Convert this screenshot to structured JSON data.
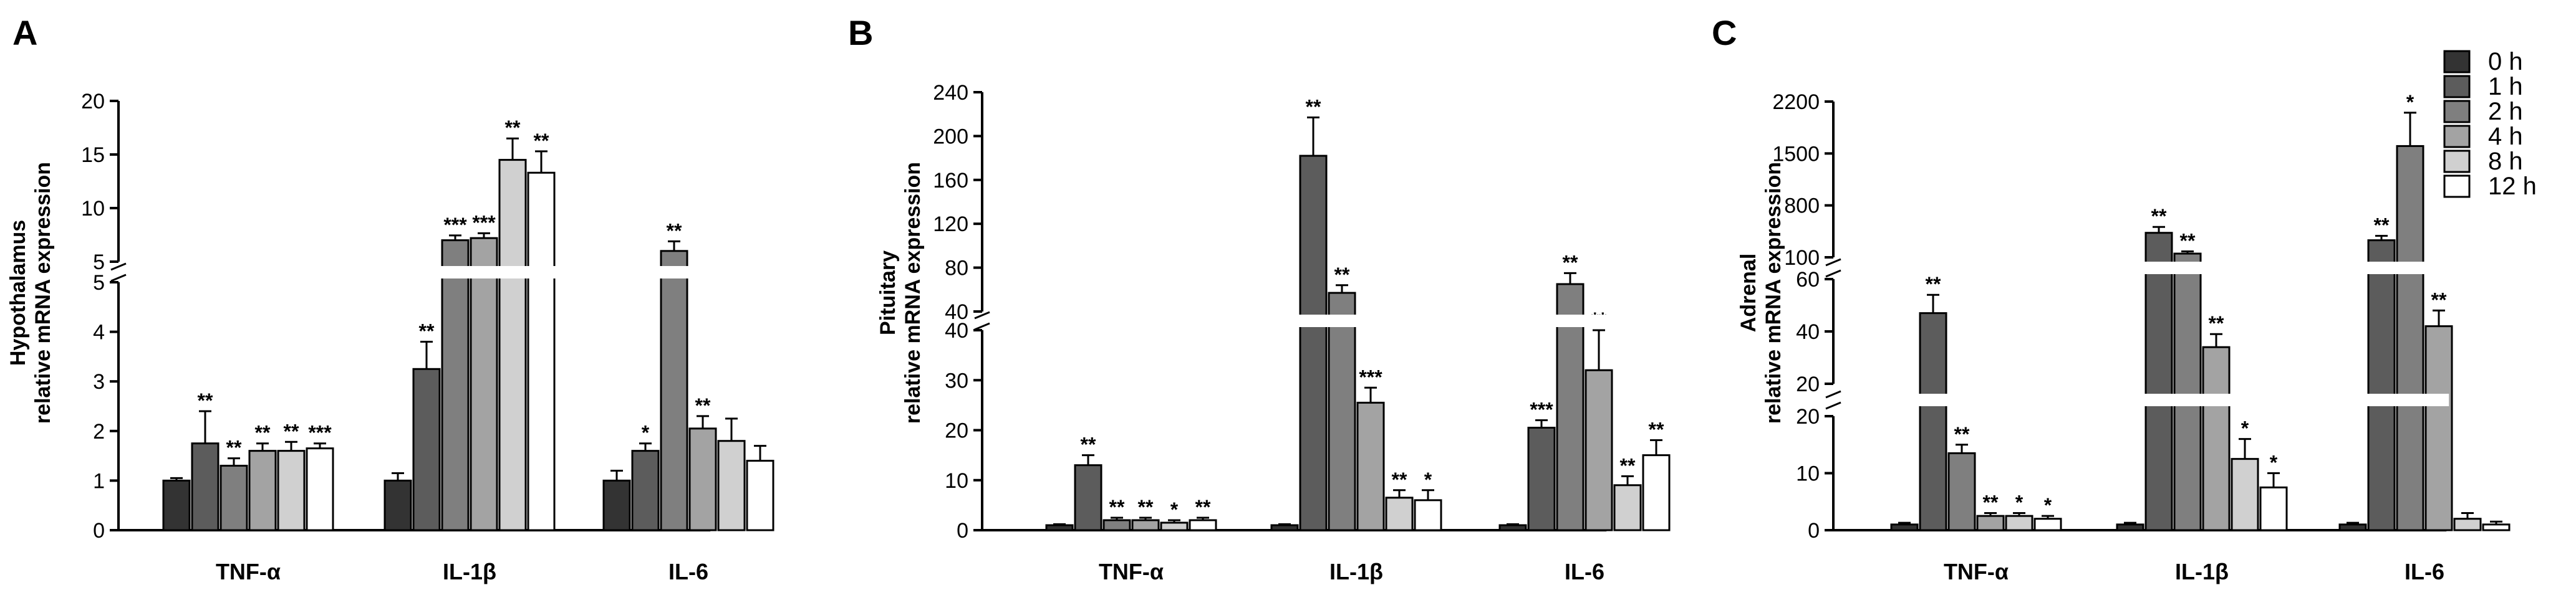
{
  "figure": {
    "legend": {
      "entries": [
        "0 h",
        "1 h",
        "2 h",
        "4 h",
        "8 h",
        "12 h"
      ],
      "colors": [
        "#333333",
        "#5c5c5c",
        "#7f7f7f",
        "#a3a3a3",
        "#d0d0d0",
        "#ffffff"
      ]
    }
  },
  "chart_data": [
    {
      "type": "bar",
      "panel_label": "A",
      "ylabel": [
        "Hypothalamus",
        "relative mRNA expression"
      ],
      "categories": [
        "TNF-α",
        "IL-1β",
        "IL-6"
      ],
      "series_labels": [
        "0 h",
        "1 h",
        "2 h",
        "4 h",
        "8 h",
        "12 h"
      ],
      "axis_break": {
        "lower": {
          "range": [
            0,
            5
          ],
          "ticks": [
            0,
            1,
            2,
            3,
            4,
            5
          ]
        },
        "upper": {
          "range": [
            5,
            20
          ],
          "ticks": [
            5,
            10,
            15,
            20
          ]
        }
      },
      "values": [
        [
          1.0,
          1.75,
          1.3,
          1.6,
          1.6,
          1.65
        ],
        [
          1.0,
          3.25,
          7.0,
          7.2,
          14.5,
          13.3
        ],
        [
          1.0,
          1.6,
          6.0,
          2.05,
          1.8,
          1.4
        ]
      ],
      "errors": [
        [
          0.05,
          0.65,
          0.15,
          0.15,
          0.18,
          0.1
        ],
        [
          0.15,
          0.55,
          0.45,
          0.45,
          2.0,
          2.0
        ],
        [
          0.2,
          0.15,
          0.9,
          0.25,
          0.45,
          0.3
        ]
      ],
      "annotations": [
        [
          "",
          "**",
          "**",
          "**",
          "**",
          "***"
        ],
        [
          "",
          "**",
          "***",
          "***",
          "**",
          "**"
        ],
        [
          "",
          "*",
          "**",
          "**",
          "",
          ""
        ]
      ]
    },
    {
      "type": "bar",
      "panel_label": "B",
      "ylabel": [
        "Pituitary",
        "relative mRNA expression"
      ],
      "categories": [
        "TNF-α",
        "IL-1β",
        "IL-6"
      ],
      "series_labels": [
        "0 h",
        "1 h",
        "2 h",
        "4 h",
        "8 h",
        "12 h"
      ],
      "axis_break": {
        "lower": {
          "range": [
            0,
            40
          ],
          "ticks": [
            0,
            10,
            20,
            30,
            40
          ]
        },
        "upper": {
          "range": [
            40,
            240
          ],
          "ticks": [
            40,
            80,
            120,
            160,
            200,
            240
          ]
        }
      },
      "values": [
        [
          1.0,
          13.0,
          2.0,
          2.0,
          1.5,
          2.0
        ],
        [
          1.0,
          182,
          57,
          25.5,
          6.5,
          6.0
        ],
        [
          1.0,
          20.5,
          65,
          32,
          9.0,
          15.0
        ]
      ],
      "errors": [
        [
          0.2,
          2.0,
          0.5,
          0.5,
          0.5,
          0.5
        ],
        [
          0.2,
          35,
          7,
          3.0,
          1.5,
          2.0
        ],
        [
          0.2,
          1.5,
          10,
          8.0,
          1.8,
          3.0
        ]
      ],
      "annotations": [
        [
          "",
          "**",
          "**",
          "**",
          "*",
          "**"
        ],
        [
          "",
          "**",
          "**",
          "***",
          "**",
          "*"
        ],
        [
          "",
          "***",
          "**",
          "**",
          "**",
          "**"
        ]
      ]
    },
    {
      "type": "bar",
      "panel_label": "C",
      "ylabel": [
        "Adrenal",
        "relative mRNA expression"
      ],
      "categories": [
        "TNF-α",
        "IL-1β",
        "IL-6"
      ],
      "series_labels": [
        "0 h",
        "1 h",
        "2 h",
        "4 h",
        "8 h",
        "12 h"
      ],
      "axis_break": {
        "lower": {
          "range": [
            0,
            20
          ],
          "ticks": [
            0,
            10,
            20
          ]
        },
        "middle": {
          "range": [
            20,
            60
          ],
          "ticks": [
            20,
            40,
            60
          ]
        },
        "upper": {
          "range": [
            100,
            2200
          ],
          "tick_labels": [
            "100",
            "800",
            "1500",
            "2200"
          ]
        }
      },
      "values": [
        [
          1.0,
          47,
          13.5,
          2.5,
          2.5,
          2.0
        ],
        [
          1.0,
          430,
          150,
          34,
          12.5,
          7.5
        ],
        [
          1.0,
          330,
          1600,
          42,
          2.0,
          1.0
        ]
      ],
      "errors": [
        [
          0.3,
          7,
          1.5,
          0.5,
          0.5,
          0.5
        ],
        [
          0.3,
          80,
          30,
          5,
          3.5,
          2.5
        ],
        [
          0.3,
          60,
          450,
          6,
          1.0,
          0.5
        ]
      ],
      "annotations": [
        [
          "",
          "**",
          "**",
          "**",
          "*",
          "*"
        ],
        [
          "",
          "**",
          "**",
          "**",
          "*",
          "*"
        ],
        [
          "",
          "**",
          "*",
          "**",
          "",
          ""
        ]
      ]
    }
  ]
}
